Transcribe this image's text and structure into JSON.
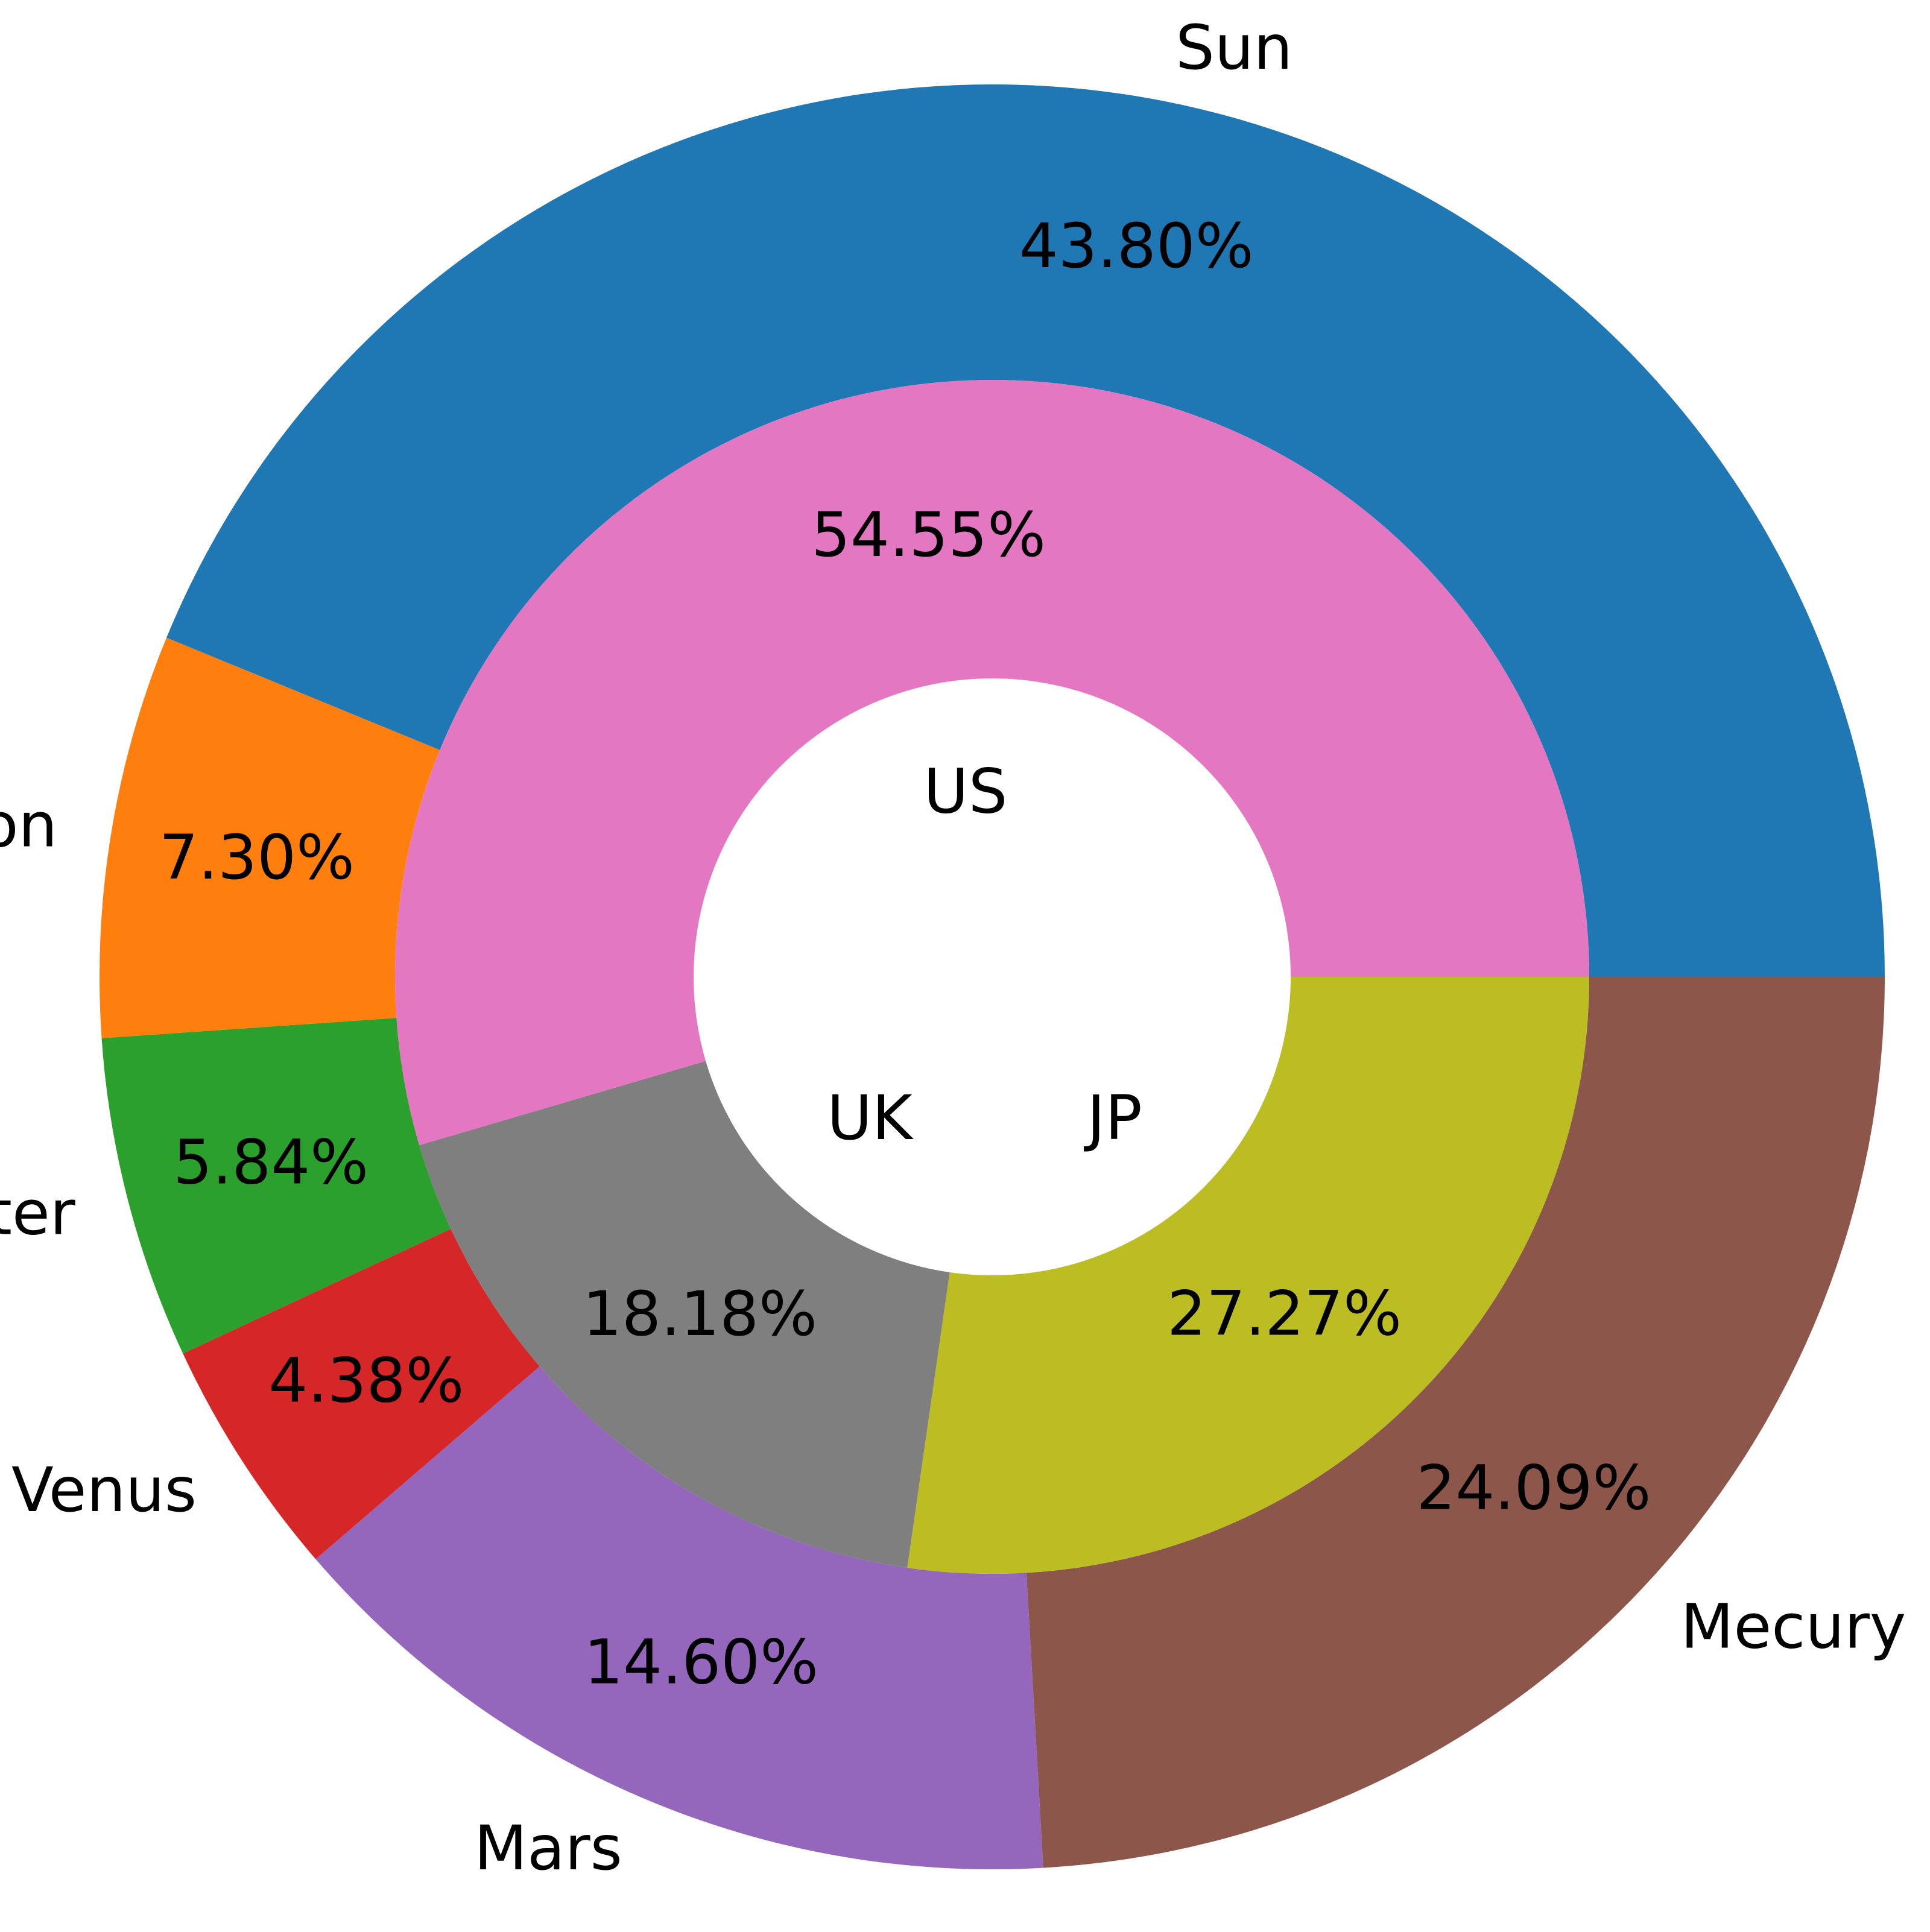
{
  "chart_data": {
    "type": "pie",
    "subtype": "nested-donut",
    "title": "",
    "outer_ring": {
      "categories": [
        "Mecury",
        "Mars",
        "Venus",
        "Jupiter",
        "Moon",
        "Sun"
      ],
      "values": [
        24.09,
        14.6,
        4.38,
        5.84,
        7.3,
        43.8
      ],
      "percent_labels": [
        "24.09%",
        "14.60%",
        "4.38%",
        "5.84%",
        "7.30%",
        "43.80%"
      ],
      "colors": [
        "#8c564b",
        "#9467bd",
        "#d62728",
        "#2ca02c",
        "#ff7f0e",
        "#1f77b4"
      ]
    },
    "inner_ring": {
      "categories": [
        "JP",
        "UK",
        "US"
      ],
      "values": [
        27.27,
        18.18,
        54.55
      ],
      "percent_labels": [
        "27.27%",
        "18.18%",
        "54.55%"
      ],
      "colors": [
        "#bcbd22",
        "#7f7f7f",
        "#e377c2"
      ]
    },
    "start_angle_deg": 0,
    "direction": "clockwise",
    "legend": "none"
  }
}
